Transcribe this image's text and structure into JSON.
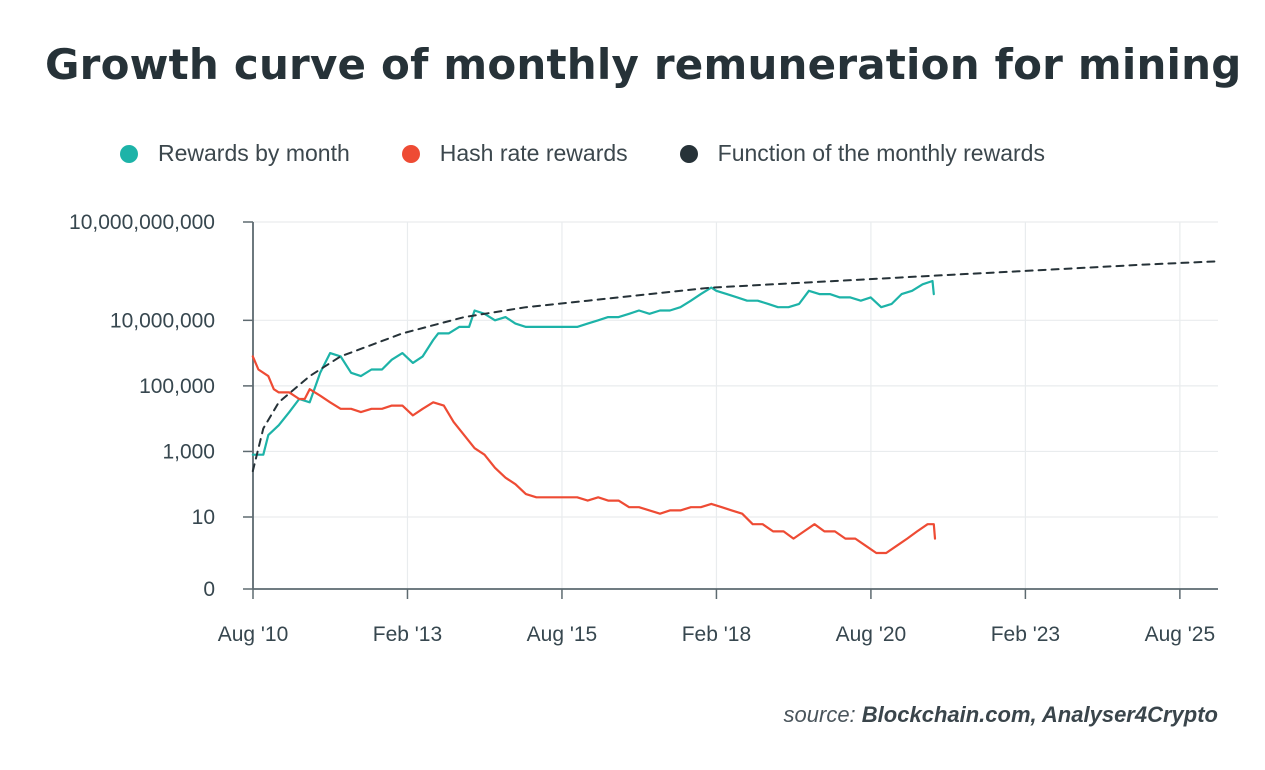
{
  "title": "Growth curve of monthly remuneration for mining",
  "legend": [
    {
      "label": "Rewards by month",
      "color": "#1db3a8"
    },
    {
      "label": "Hash rate rewards",
      "color": "#ee4b34"
    },
    {
      "label": "Function of the monthly rewards",
      "color": "#263238"
    }
  ],
  "source": {
    "prefix": "source:",
    "sources": "Blockchain.com,  Analyser4Crypto"
  },
  "chart_data": {
    "type": "line",
    "title": "Growth curve of monthly remuneration for mining",
    "xlabel": "",
    "ylabel": "",
    "x_scale": "time (years)",
    "y_scale": "log10",
    "xlim": [
      2010.583,
      2026.2
    ],
    "ylim_log10": [
      0,
      10
    ],
    "x_ticks": [
      {
        "label": "Aug '10",
        "value": 2010.583
      },
      {
        "label": "Feb '13",
        "value": 2013.083
      },
      {
        "label": "Aug '15",
        "value": 2015.583
      },
      {
        "label": "Feb '18",
        "value": 2018.083
      },
      {
        "label": "Aug '20",
        "value": 2020.583
      },
      {
        "label": "Feb '23",
        "value": 2023.083
      },
      {
        "label": "Aug '25",
        "value": 2025.583
      }
    ],
    "y_ticks": [
      {
        "label": "10,000,000,000",
        "log": 10
      },
      {
        "label": "10,000,000",
        "log": 7
      },
      {
        "label": "100,000",
        "log": 5
      },
      {
        "label": "1,000",
        "log": 3
      },
      {
        "label": "10",
        "log": 1
      },
      {
        "label": "0",
        "log": 0
      }
    ],
    "series": [
      {
        "name": "Rewards by month",
        "style": "solid",
        "points": [
          [
            2010.58,
            2.9
          ],
          [
            2010.75,
            2.9
          ],
          [
            2010.83,
            3.5
          ],
          [
            2011.0,
            3.8
          ],
          [
            2011.17,
            4.2
          ],
          [
            2011.33,
            4.6
          ],
          [
            2011.5,
            4.5
          ],
          [
            2011.67,
            5.4
          ],
          [
            2011.83,
            6.0
          ],
          [
            2012.0,
            5.9
          ],
          [
            2012.17,
            5.4
          ],
          [
            2012.33,
            5.3
          ],
          [
            2012.5,
            5.5
          ],
          [
            2012.67,
            5.5
          ],
          [
            2012.83,
            5.8
          ],
          [
            2013.0,
            6.0
          ],
          [
            2013.17,
            5.7
          ],
          [
            2013.33,
            5.9
          ],
          [
            2013.5,
            6.4
          ],
          [
            2013.58,
            6.6
          ],
          [
            2013.75,
            6.6
          ],
          [
            2013.92,
            6.8
          ],
          [
            2014.08,
            6.8
          ],
          [
            2014.17,
            7.3
          ],
          [
            2014.33,
            7.2
          ],
          [
            2014.5,
            7.0
          ],
          [
            2014.67,
            7.1
          ],
          [
            2014.83,
            6.9
          ],
          [
            2015.0,
            6.8
          ],
          [
            2015.17,
            6.8
          ],
          [
            2015.33,
            6.8
          ],
          [
            2015.5,
            6.8
          ],
          [
            2015.67,
            6.8
          ],
          [
            2015.83,
            6.8
          ],
          [
            2016.0,
            6.9
          ],
          [
            2016.17,
            7.0
          ],
          [
            2016.33,
            7.1
          ],
          [
            2016.5,
            7.1
          ],
          [
            2016.67,
            7.2
          ],
          [
            2016.83,
            7.3
          ],
          [
            2017.0,
            7.2
          ],
          [
            2017.17,
            7.3
          ],
          [
            2017.33,
            7.3
          ],
          [
            2017.5,
            7.4
          ],
          [
            2017.67,
            7.6
          ],
          [
            2017.83,
            7.8
          ],
          [
            2018.0,
            8.0
          ],
          [
            2018.08,
            7.9
          ],
          [
            2018.25,
            7.8
          ],
          [
            2018.42,
            7.7
          ],
          [
            2018.58,
            7.6
          ],
          [
            2018.75,
            7.6
          ],
          [
            2018.92,
            7.5
          ],
          [
            2019.08,
            7.4
          ],
          [
            2019.25,
            7.4
          ],
          [
            2019.42,
            7.5
          ],
          [
            2019.58,
            7.9
          ],
          [
            2019.75,
            7.8
          ],
          [
            2019.92,
            7.8
          ],
          [
            2020.08,
            7.7
          ],
          [
            2020.25,
            7.7
          ],
          [
            2020.42,
            7.6
          ],
          [
            2020.58,
            7.7
          ],
          [
            2020.75,
            7.4
          ],
          [
            2020.92,
            7.5
          ],
          [
            2021.08,
            7.8
          ],
          [
            2021.25,
            7.9
          ],
          [
            2021.42,
            8.1
          ],
          [
            2021.58,
            8.2
          ],
          [
            2021.6,
            7.8
          ]
        ]
      },
      {
        "name": "Hash rate rewards",
        "style": "solid",
        "points": [
          [
            2010.58,
            5.9
          ],
          [
            2010.67,
            5.5
          ],
          [
            2010.83,
            5.3
          ],
          [
            2010.92,
            4.9
          ],
          [
            2011.0,
            4.8
          ],
          [
            2011.17,
            4.8
          ],
          [
            2011.33,
            4.6
          ],
          [
            2011.42,
            4.6
          ],
          [
            2011.5,
            4.9
          ],
          [
            2011.67,
            4.7
          ],
          [
            2011.83,
            4.5
          ],
          [
            2012.0,
            4.3
          ],
          [
            2012.17,
            4.3
          ],
          [
            2012.33,
            4.2
          ],
          [
            2012.5,
            4.3
          ],
          [
            2012.67,
            4.3
          ],
          [
            2012.83,
            4.4
          ],
          [
            2013.0,
            4.4
          ],
          [
            2013.17,
            4.1
          ],
          [
            2013.33,
            4.3
          ],
          [
            2013.5,
            4.5
          ],
          [
            2013.67,
            4.4
          ],
          [
            2013.83,
            3.9
          ],
          [
            2014.0,
            3.5
          ],
          [
            2014.17,
            3.1
          ],
          [
            2014.33,
            2.9
          ],
          [
            2014.5,
            2.5
          ],
          [
            2014.67,
            2.2
          ],
          [
            2014.83,
            2.0
          ],
          [
            2015.0,
            1.7
          ],
          [
            2015.17,
            1.6
          ],
          [
            2015.33,
            1.6
          ],
          [
            2015.5,
            1.6
          ],
          [
            2015.67,
            1.6
          ],
          [
            2015.83,
            1.6
          ],
          [
            2016.0,
            1.5
          ],
          [
            2016.17,
            1.6
          ],
          [
            2016.33,
            1.5
          ],
          [
            2016.5,
            1.5
          ],
          [
            2016.67,
            1.3
          ],
          [
            2016.83,
            1.3
          ],
          [
            2017.0,
            1.2
          ],
          [
            2017.17,
            1.1
          ],
          [
            2017.33,
            1.2
          ],
          [
            2017.5,
            1.2
          ],
          [
            2017.67,
            1.3
          ],
          [
            2017.83,
            1.3
          ],
          [
            2018.0,
            1.4
          ],
          [
            2018.17,
            1.3
          ],
          [
            2018.33,
            1.2
          ],
          [
            2018.5,
            1.1
          ],
          [
            2018.67,
            0.9
          ],
          [
            2018.83,
            0.9
          ],
          [
            2019.0,
            0.8
          ],
          [
            2019.17,
            0.8
          ],
          [
            2019.33,
            0.7
          ],
          [
            2019.5,
            0.8
          ],
          [
            2019.67,
            0.9
          ],
          [
            2019.83,
            0.8
          ],
          [
            2020.0,
            0.8
          ],
          [
            2020.17,
            0.7
          ],
          [
            2020.33,
            0.7
          ],
          [
            2020.5,
            0.6
          ],
          [
            2020.67,
            0.5
          ],
          [
            2020.83,
            0.5
          ],
          [
            2021.0,
            0.6
          ],
          [
            2021.17,
            0.7
          ],
          [
            2021.33,
            0.8
          ],
          [
            2021.5,
            0.9
          ],
          [
            2021.6,
            0.9
          ],
          [
            2021.62,
            0.7
          ]
        ]
      },
      {
        "name": "Function of the monthly rewards",
        "style": "dashed",
        "points": [
          [
            2010.58,
            2.4
          ],
          [
            2010.75,
            3.7
          ],
          [
            2011.0,
            4.5
          ],
          [
            2011.5,
            5.3
          ],
          [
            2012.0,
            5.9
          ],
          [
            2013.0,
            6.6
          ],
          [
            2014.0,
            7.1
          ],
          [
            2015.0,
            7.4
          ],
          [
            2016.0,
            7.6
          ],
          [
            2017.0,
            7.8
          ],
          [
            2018.0,
            8.0
          ],
          [
            2019.0,
            8.1
          ],
          [
            2020.0,
            8.2
          ],
          [
            2021.0,
            8.3
          ],
          [
            2022.0,
            8.4
          ],
          [
            2023.0,
            8.5
          ],
          [
            2024.0,
            8.6
          ],
          [
            2025.0,
            8.7
          ],
          [
            2026.2,
            8.8
          ]
        ]
      }
    ]
  }
}
